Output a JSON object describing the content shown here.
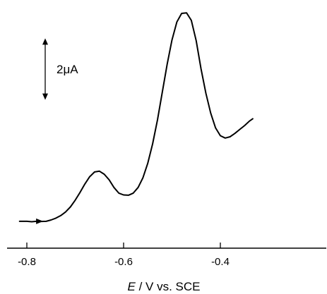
{
  "chart_data": {
    "type": "line",
    "xlabel_italic": "E",
    "xlabel_rest": " / V vs. SCE",
    "ylabel": "",
    "xlim": [
      -0.82,
      -0.32
    ],
    "y_scale_bar": {
      "label": "2μA",
      "value": 2
    },
    "x_ticks": [
      -0.8,
      -0.6,
      -0.4
    ],
    "x_tick_labels": [
      "-0.8",
      "-0.6",
      "-0.4"
    ],
    "grid": false,
    "series": [
      {
        "values": [
          [
            -0.815,
            -0.05
          ],
          [
            -0.8,
            -0.05
          ],
          [
            -0.79,
            -0.068
          ],
          [
            -0.78,
            -0.052
          ],
          [
            -0.77,
            -0.058
          ],
          [
            -0.76,
            -0.052
          ],
          [
            -0.75,
            0.0
          ],
          [
            -0.74,
            0.07
          ],
          [
            -0.73,
            0.168
          ],
          [
            -0.72,
            0.305
          ],
          [
            -0.71,
            0.5
          ],
          [
            -0.7,
            0.76
          ],
          [
            -0.69,
            1.06
          ],
          [
            -0.68,
            1.38
          ],
          [
            -0.67,
            1.66
          ],
          [
            -0.66,
            1.84
          ],
          [
            -0.65,
            1.87
          ],
          [
            -0.64,
            1.755
          ],
          [
            -0.63,
            1.54
          ],
          [
            -0.62,
            1.25
          ],
          [
            -0.61,
            1.03
          ],
          [
            -0.6,
            0.96
          ],
          [
            -0.59,
            0.95
          ],
          [
            -0.58,
            1.03
          ],
          [
            -0.57,
            1.25
          ],
          [
            -0.56,
            1.62
          ],
          [
            -0.55,
            2.18
          ],
          [
            -0.54,
            2.92
          ],
          [
            -0.53,
            3.84
          ],
          [
            -0.52,
            4.9
          ],
          [
            -0.51,
            5.97
          ],
          [
            -0.5,
            6.9
          ],
          [
            -0.49,
            7.59
          ],
          [
            -0.48,
            7.92
          ],
          [
            -0.47,
            7.94
          ],
          [
            -0.46,
            7.65
          ],
          [
            -0.45,
            6.87
          ],
          [
            -0.44,
            5.8
          ],
          [
            -0.43,
            4.86
          ],
          [
            -0.42,
            4.1
          ],
          [
            -0.41,
            3.53
          ],
          [
            -0.4,
            3.23
          ],
          [
            -0.39,
            3.14
          ],
          [
            -0.38,
            3.19
          ],
          [
            -0.37,
            3.32
          ],
          [
            -0.36,
            3.47
          ],
          [
            -0.35,
            3.62
          ],
          [
            -0.34,
            3.79
          ],
          [
            -0.333,
            3.88
          ]
        ]
      }
    ],
    "scan_arrow": {
      "at_x": -0.775,
      "direction": "positive"
    }
  },
  "colors": {
    "line": "#000000",
    "axis": "#000000",
    "background": "#ffffff"
  }
}
